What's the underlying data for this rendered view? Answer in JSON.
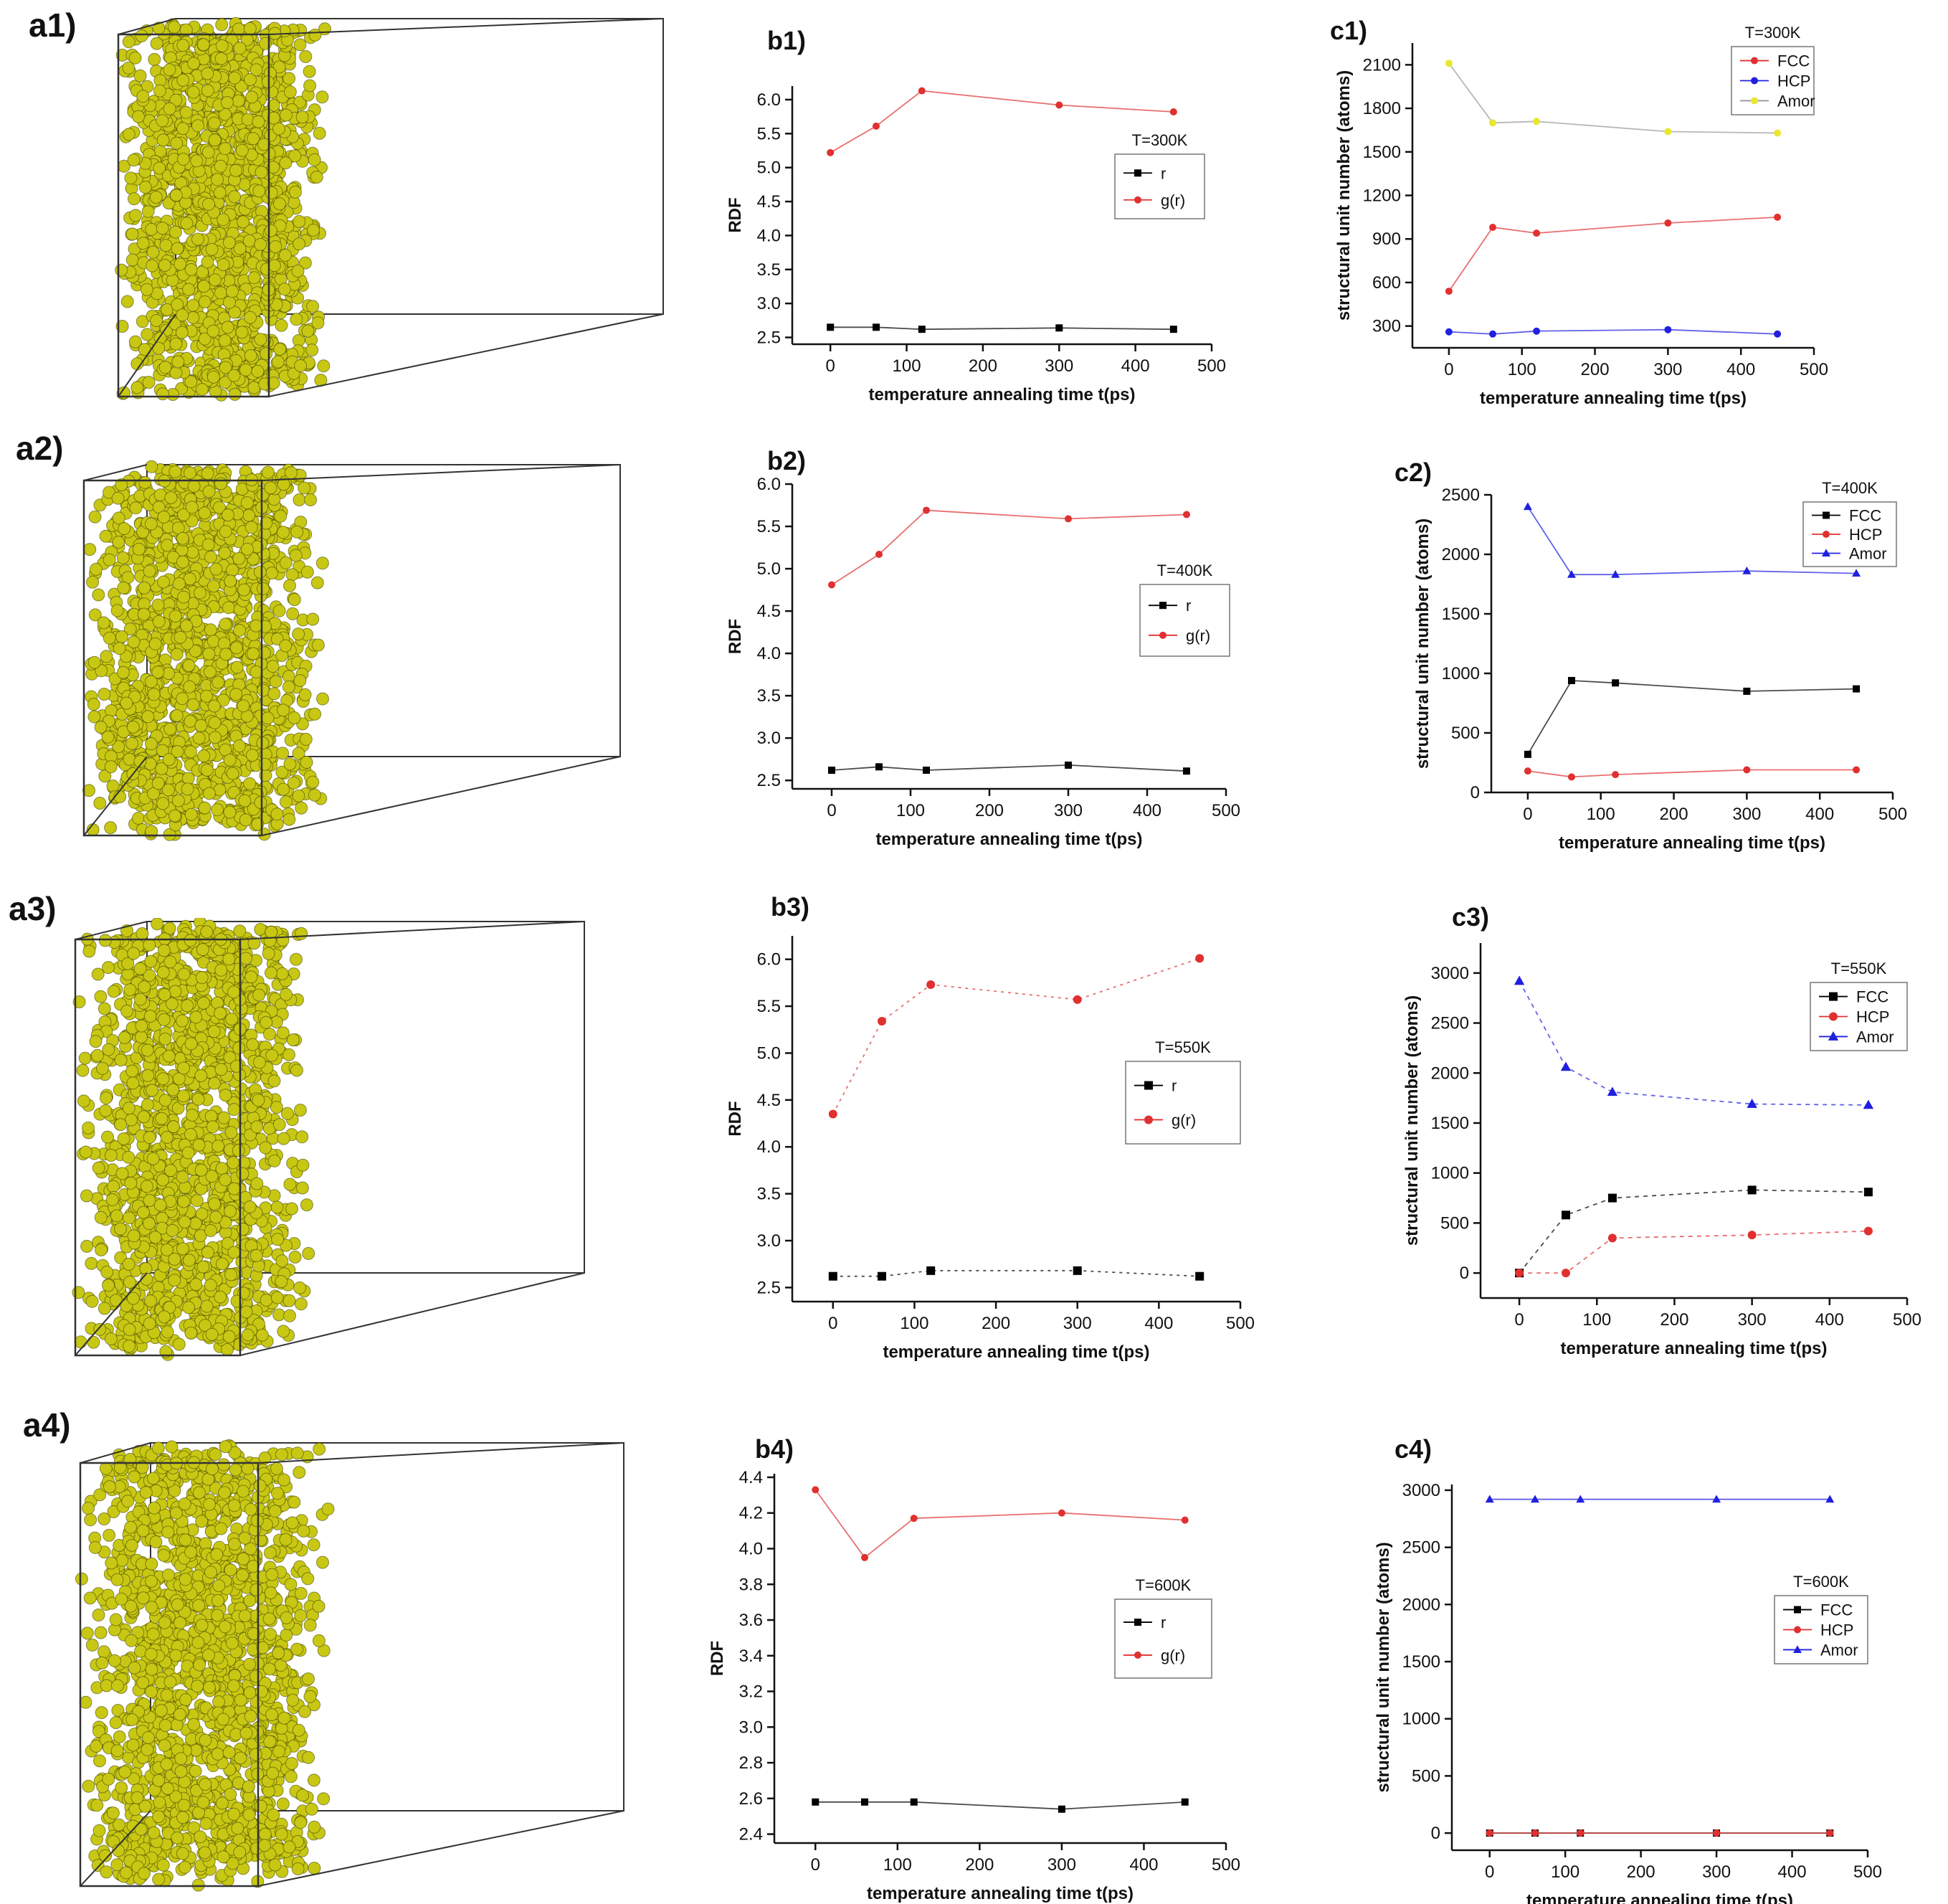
{
  "panels": {
    "a1": "a1)",
    "a2": "a2)",
    "a3": "a3)",
    "a4": "a4)",
    "b1": "b1)",
    "b2": "b2)",
    "b3": "b3)",
    "b4": "b4)",
    "c1": "c1)",
    "c2": "c2)",
    "c3": "c3)",
    "c4": "c4)"
  },
  "simulation_colors": {
    "amorphous_atom": "#c8c814",
    "fcc_atom": "#d41414",
    "hcp_atom": "#1414c8",
    "box_edge": "#333333"
  },
  "chart_data": [
    {
      "id": "b1",
      "type": "line",
      "title": "",
      "legend_title": "T=300K",
      "xlabel": "temperature annealing time t(ps)",
      "ylabel": "RDF",
      "xlim": [
        -50,
        500
      ],
      "ylim": [
        2.4,
        6.2
      ],
      "xticks": [
        0,
        100,
        200,
        300,
        400,
        500
      ],
      "yticks": [
        "2.5",
        "3.0",
        "3.5",
        "4.0",
        "4.5",
        "5.0",
        "5.5",
        "6.0"
      ],
      "series": [
        {
          "name": "r",
          "color": "#000000",
          "marker": "square",
          "x": [
            0,
            60,
            120,
            300,
            450
          ],
          "values": [
            2.65,
            2.65,
            2.62,
            2.64,
            2.62
          ]
        },
        {
          "name": "g(r)",
          "color": "#e03030",
          "marker": "circle",
          "x": [
            0,
            60,
            120,
            300,
            450
          ],
          "values": [
            5.22,
            5.61,
            6.13,
            5.92,
            5.82
          ]
        }
      ]
    },
    {
      "id": "c1",
      "type": "line",
      "title": "",
      "legend_title": "T=300K",
      "xlabel": "temperature annealing time t(ps)",
      "ylabel": "structural unit number (atoms)",
      "xlim": [
        -50,
        500
      ],
      "ylim": [
        150,
        2250
      ],
      "xticks": [
        0,
        100,
        200,
        300,
        400,
        500
      ],
      "yticks": [
        "300",
        "600",
        "900",
        "1200",
        "1500",
        "1800",
        "2100"
      ],
      "series": [
        {
          "name": "FCC",
          "color": "#e03030",
          "marker": "circle",
          "x": [
            0,
            60,
            120,
            300,
            450
          ],
          "values": [
            540,
            980,
            940,
            1010,
            1050
          ]
        },
        {
          "name": "HCP",
          "color": "#2020e0",
          "marker": "circle",
          "x": [
            0,
            60,
            120,
            300,
            450
          ],
          "values": [
            260,
            245,
            265,
            275,
            245
          ]
        },
        {
          "name": "Amor",
          "color": "#e8e830",
          "marker": "circle",
          "x": [
            0,
            60,
            120,
            300,
            450
          ],
          "values": [
            2110,
            1700,
            1710,
            1640,
            1630
          ]
        }
      ]
    },
    {
      "id": "b2",
      "type": "line",
      "title": "",
      "legend_title": "T=400K",
      "xlabel": "temperature annealing time t(ps)",
      "ylabel": "RDF",
      "xlim": [
        -50,
        500
      ],
      "ylim": [
        2.4,
        6.0
      ],
      "xticks": [
        0,
        100,
        200,
        300,
        400,
        500
      ],
      "yticks": [
        "2.5",
        "3.0",
        "3.5",
        "4.0",
        "4.5",
        "5.0",
        "5.5",
        "6.0"
      ],
      "series": [
        {
          "name": "r",
          "color": "#000000",
          "marker": "square",
          "x": [
            0,
            60,
            120,
            300,
            450
          ],
          "values": [
            2.62,
            2.66,
            2.62,
            2.68,
            2.61
          ]
        },
        {
          "name": "g(r)",
          "color": "#e03030",
          "marker": "circle",
          "x": [
            0,
            60,
            120,
            300,
            450
          ],
          "values": [
            4.81,
            5.17,
            5.69,
            5.59,
            5.64
          ]
        }
      ]
    },
    {
      "id": "c2",
      "type": "line",
      "title": "",
      "legend_title": "T=400K",
      "xlabel": "temperature annealing time t(ps)",
      "ylabel": "structural unit number (atoms)",
      "xlim": [
        -50,
        500
      ],
      "ylim": [
        0,
        2500
      ],
      "xticks": [
        0,
        100,
        200,
        300,
        400,
        500
      ],
      "yticks": [
        "0",
        "500",
        "1000",
        "1500",
        "2000",
        "2500"
      ],
      "series": [
        {
          "name": "FCC",
          "color": "#000000",
          "marker": "square",
          "x": [
            0,
            60,
            120,
            300,
            450
          ],
          "values": [
            320,
            940,
            920,
            850,
            870
          ]
        },
        {
          "name": "HCP",
          "color": "#e03030",
          "marker": "circle",
          "x": [
            0,
            60,
            120,
            300,
            450
          ],
          "values": [
            180,
            130,
            150,
            190,
            190
          ]
        },
        {
          "name": "Amor",
          "color": "#2020e0",
          "marker": "triangle",
          "x": [
            0,
            60,
            120,
            300,
            450
          ],
          "values": [
            2400,
            1830,
            1830,
            1860,
            1840
          ]
        }
      ]
    },
    {
      "id": "b3",
      "type": "line",
      "title": "",
      "legend_title": "T=550K",
      "xlabel": "temperature annealing time t(ps)",
      "ylabel": "RDF",
      "xlim": [
        -50,
        500
      ],
      "ylim": [
        2.35,
        6.25
      ],
      "xticks": [
        0,
        100,
        200,
        300,
        400,
        500
      ],
      "yticks": [
        "2.5",
        "3.0",
        "3.5",
        "4.0",
        "4.5",
        "5.0",
        "5.5",
        "6.0"
      ],
      "series": [
        {
          "name": "r",
          "color": "#000000",
          "marker": "square",
          "x": [
            0,
            60,
            120,
            300,
            450
          ],
          "values": [
            2.62,
            2.62,
            2.68,
            2.68,
            2.62
          ]
        },
        {
          "name": "g(r)",
          "color": "#e03030",
          "marker": "circle",
          "x": [
            0,
            60,
            120,
            300,
            450
          ],
          "values": [
            4.35,
            5.34,
            5.73,
            5.57,
            6.01
          ]
        }
      ]
    },
    {
      "id": "c3",
      "type": "line",
      "title": "",
      "legend_title": "T=550K",
      "xlabel": "temperature annealing time t(ps)",
      "ylabel": "structural unit number (atoms)",
      "xlim": [
        -50,
        500
      ],
      "ylim": [
        -250,
        3300
      ],
      "xticks": [
        0,
        100,
        200,
        300,
        400,
        500
      ],
      "yticks": [
        "0",
        "500",
        "1000",
        "1500",
        "2000",
        "2500",
        "3000"
      ],
      "series": [
        {
          "name": "FCC",
          "color": "#000000",
          "marker": "square",
          "x": [
            0,
            60,
            120,
            300,
            450
          ],
          "values": [
            0,
            580,
            750,
            830,
            810
          ]
        },
        {
          "name": "HCP",
          "color": "#e03030",
          "marker": "circle",
          "x": [
            0,
            60,
            120,
            300,
            450
          ],
          "values": [
            0,
            0,
            350,
            380,
            420
          ]
        },
        {
          "name": "Amor",
          "color": "#2020e0",
          "marker": "triangle",
          "x": [
            0,
            60,
            120,
            300,
            450
          ],
          "values": [
            2920,
            2060,
            1810,
            1690,
            1680
          ]
        }
      ]
    },
    {
      "id": "b4",
      "type": "line",
      "title": "",
      "legend_title": "T=600K",
      "xlabel": "temperature annealing time t(ps)",
      "ylabel": "RDF",
      "xlim": [
        -50,
        500
      ],
      "ylim": [
        2.35,
        4.42
      ],
      "xticks": [
        0,
        100,
        200,
        300,
        400,
        500
      ],
      "yticks": [
        "2.4",
        "2.6",
        "2.8",
        "3.0",
        "3.2",
        "3.4",
        "3.6",
        "3.8",
        "4.0",
        "4.2",
        "4.4"
      ],
      "series": [
        {
          "name": "r",
          "color": "#000000",
          "marker": "square",
          "x": [
            0,
            60,
            120,
            300,
            450
          ],
          "values": [
            2.58,
            2.58,
            2.58,
            2.54,
            2.58
          ]
        },
        {
          "name": "g(r)",
          "color": "#e03030",
          "marker": "circle",
          "x": [
            0,
            60,
            120,
            300,
            450
          ],
          "values": [
            4.33,
            3.95,
            4.17,
            4.2,
            4.16
          ]
        }
      ]
    },
    {
      "id": "c4",
      "type": "line",
      "title": "",
      "legend_title": "T=600K",
      "xlabel": "temperature annealing time t(ps)",
      "ylabel": "structural unit number (atoms)",
      "xlim": [
        -50,
        500
      ],
      "ylim": [
        -150,
        3050
      ],
      "xticks": [
        0,
        100,
        200,
        300,
        400,
        500
      ],
      "yticks": [
        "0",
        "500",
        "1000",
        "1500",
        "2000",
        "2500",
        "3000"
      ],
      "series": [
        {
          "name": "FCC",
          "color": "#000000",
          "marker": "square",
          "x": [
            0,
            60,
            120,
            300,
            450
          ],
          "values": [
            0,
            0,
            0,
            0,
            0
          ]
        },
        {
          "name": "HCP",
          "color": "#e03030",
          "marker": "circle",
          "x": [
            0,
            60,
            120,
            300,
            450
          ],
          "values": [
            0,
            0,
            0,
            0,
            0
          ]
        },
        {
          "name": "Amor",
          "color": "#2020e0",
          "marker": "triangle",
          "x": [
            0,
            60,
            120,
            300,
            450
          ],
          "values": [
            2920,
            2920,
            2920,
            2920,
            2920
          ]
        }
      ]
    }
  ]
}
